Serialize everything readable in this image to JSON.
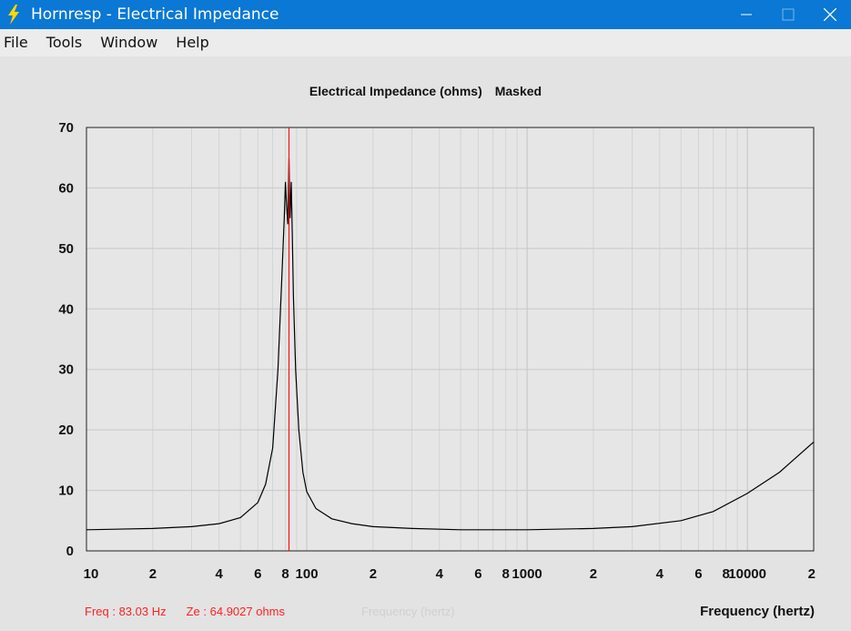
{
  "window": {
    "title": "Hornresp - Electrical Impedance",
    "icons": {
      "app": "lightning-icon",
      "minimize": "minimize-icon",
      "maximize": "maximize-icon",
      "close": "close-icon"
    }
  },
  "menu": [
    "File",
    "Tools",
    "Window",
    "Help"
  ],
  "chart_data": {
    "type": "line",
    "title": "Electrical Impedance (ohms)",
    "subtitle": "Masked",
    "xlabel": "Frequency (hertz)",
    "x_scale": "log",
    "xlim": [
      10,
      20000
    ],
    "ylim": [
      0,
      70
    ],
    "y_ticks": [
      0,
      10,
      20,
      30,
      40,
      50,
      60,
      70
    ],
    "x_tick_labels": [
      {
        "value": 10,
        "label": "10"
      },
      {
        "value": 20,
        "label": "2"
      },
      {
        "value": 40,
        "label": "4"
      },
      {
        "value": 60,
        "label": "6"
      },
      {
        "value": 80,
        "label": "8"
      },
      {
        "value": 100,
        "label": "100"
      },
      {
        "value": 200,
        "label": "2"
      },
      {
        "value": 400,
        "label": "4"
      },
      {
        "value": 600,
        "label": "6"
      },
      {
        "value": 800,
        "label": "8"
      },
      {
        "value": 1000,
        "label": "1000"
      },
      {
        "value": 2000,
        "label": "2"
      },
      {
        "value": 4000,
        "label": "4"
      },
      {
        "value": 6000,
        "label": "6"
      },
      {
        "value": 8000,
        "label": "8"
      },
      {
        "value": 10000,
        "label": "10000"
      },
      {
        "value": 20000,
        "label": "2"
      }
    ],
    "grid": true,
    "cursor": {
      "freq": 83.03,
      "ze": 64.9027
    },
    "series": [
      {
        "color": "#000000",
        "x": [
          10,
          20,
          30,
          40,
          50,
          60,
          65,
          70,
          74,
          77,
          79,
          80,
          81,
          82,
          83,
          84,
          85,
          86,
          87,
          89,
          92,
          96,
          100,
          110,
          130,
          160,
          200,
          300,
          500,
          1000,
          2000,
          3000,
          5000,
          7000,
          10000,
          14000,
          20000
        ],
        "y": [
          3.5,
          3.7,
          4.0,
          4.5,
          5.5,
          8.0,
          11.0,
          17.0,
          30.0,
          45.0,
          55.0,
          61.0,
          57.0,
          54.0,
          64.9,
          55.0,
          61.0,
          52.0,
          42.0,
          30.0,
          20.0,
          13.0,
          9.8,
          7.0,
          5.3,
          4.5,
          4.0,
          3.7,
          3.5,
          3.5,
          3.7,
          4.0,
          5.0,
          6.5,
          9.5,
          13.0,
          18.0
        ]
      }
    ]
  },
  "status": {
    "freq": "Freq : 83.03 Hz",
    "ze": "Ze : 64.9027 ohms",
    "ghost": "Frequency (hertz)",
    "xlabel": "Frequency (hertz)"
  }
}
